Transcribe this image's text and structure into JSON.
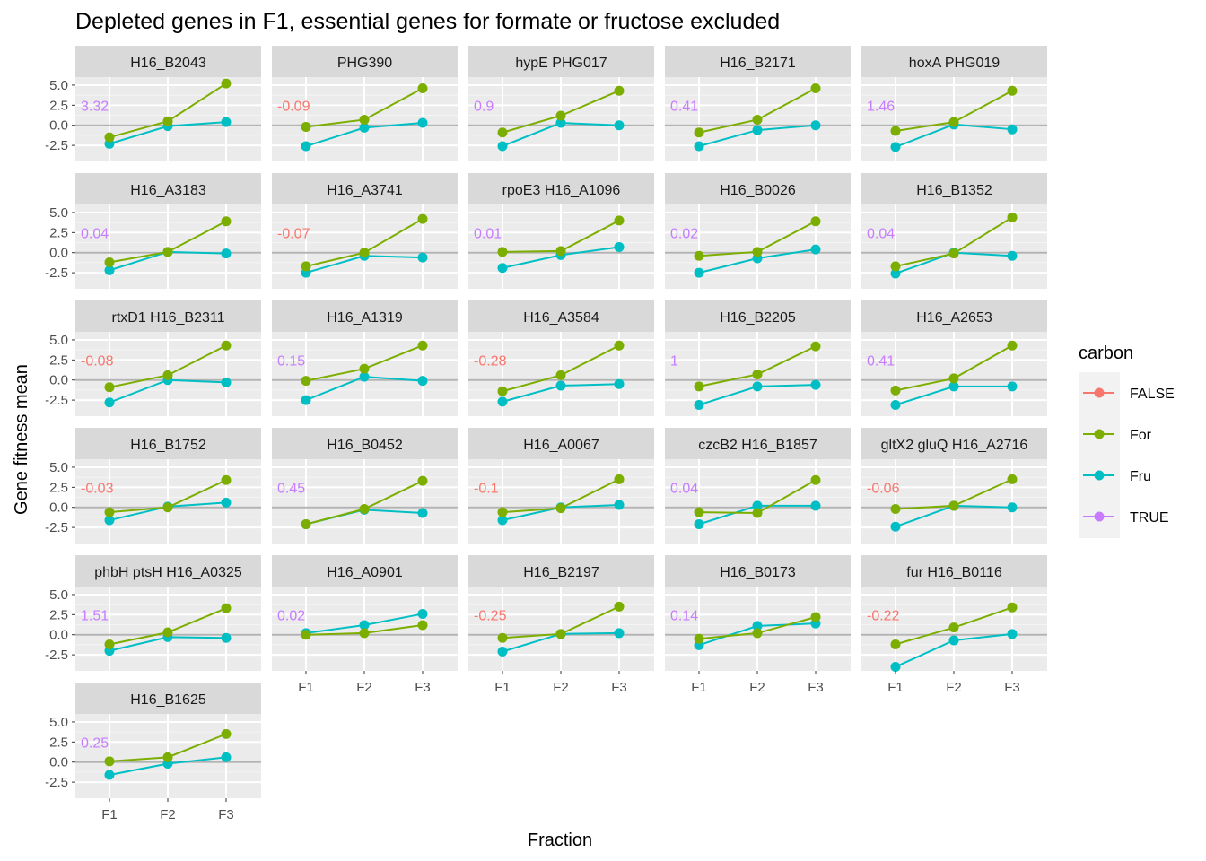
{
  "chart_data": {
    "type": "line",
    "title": "Depleted genes in F1, essential genes for formate or fructose excluded",
    "xlabel": "Fraction",
    "ylabel": "Gene fitness mean",
    "x": [
      "F1",
      "F2",
      "F3"
    ],
    "yticks": [
      5.0,
      2.5,
      0.0,
      -2.5
    ],
    "ytick_labels": [
      "5.0",
      "2.5",
      "0.0",
      "-2.5"
    ],
    "ylim": [
      -4.5,
      6.0
    ],
    "grid": true,
    "legend": {
      "title": "carbon",
      "position": "right",
      "entries": [
        {
          "label": "FALSE",
          "color": "#F8766D"
        },
        {
          "label": "For",
          "color": "#7CAE00"
        },
        {
          "label": "Fru",
          "color": "#00BFC4"
        },
        {
          "label": "TRUE",
          "color": "#C77CFF"
        }
      ]
    },
    "colors": {
      "FALSE": "#F8766D",
      "For": "#7CAE00",
      "Fru": "#00BFC4",
      "TRUE": "#C77CFF"
    },
    "panels": [
      {
        "gene": "H16_B2043",
        "label": "3.32",
        "flag": "TRUE",
        "For": [
          -1.5,
          0.5,
          5.2
        ],
        "Fru": [
          -2.3,
          -0.1,
          0.4
        ]
      },
      {
        "gene": "PHG390",
        "label": "-0.09",
        "flag": "FALSE",
        "For": [
          -0.2,
          0.7,
          4.6
        ],
        "Fru": [
          -2.6,
          -0.3,
          0.3
        ]
      },
      {
        "gene": "hypE PHG017",
        "label": "0.9",
        "flag": "TRUE",
        "For": [
          -0.9,
          1.2,
          4.3
        ],
        "Fru": [
          -2.6,
          0.3,
          0.0
        ]
      },
      {
        "gene": "H16_B2171",
        "label": "0.41",
        "flag": "TRUE",
        "For": [
          -0.9,
          0.7,
          4.6
        ],
        "Fru": [
          -2.6,
          -0.6,
          0.0
        ]
      },
      {
        "gene": "hoxA PHG019",
        "label": "1.46",
        "flag": "TRUE",
        "For": [
          -0.7,
          0.4,
          4.3
        ],
        "Fru": [
          -2.7,
          0.1,
          -0.5
        ]
      },
      {
        "gene": "H16_A3183",
        "label": "0.04",
        "flag": "TRUE",
        "For": [
          -1.2,
          0.1,
          3.9
        ],
        "Fru": [
          -2.2,
          0.1,
          -0.1
        ]
      },
      {
        "gene": "H16_A3741",
        "label": "-0.07",
        "flag": "FALSE",
        "For": [
          -1.7,
          0.0,
          4.2
        ],
        "Fru": [
          -2.5,
          -0.4,
          -0.6
        ]
      },
      {
        "gene": "rpoE3 H16_A1096",
        "label": "0.01",
        "flag": "TRUE",
        "For": [
          0.1,
          0.2,
          4.0
        ],
        "Fru": [
          -1.9,
          -0.3,
          0.7
        ]
      },
      {
        "gene": "H16_B0026",
        "label": "0.02",
        "flag": "TRUE",
        "For": [
          -0.4,
          0.1,
          3.9
        ],
        "Fru": [
          -2.5,
          -0.7,
          0.4
        ]
      },
      {
        "gene": "H16_B1352",
        "label": "0.04",
        "flag": "TRUE",
        "For": [
          -1.7,
          -0.1,
          4.4
        ],
        "Fru": [
          -2.6,
          0.0,
          -0.4
        ]
      },
      {
        "gene": "rtxD1 H16_B2311",
        "label": "-0.08",
        "flag": "FALSE",
        "For": [
          -0.9,
          0.6,
          4.3
        ],
        "Fru": [
          -2.8,
          0.0,
          -0.3
        ]
      },
      {
        "gene": "H16_A1319",
        "label": "0.15",
        "flag": "TRUE",
        "For": [
          -0.1,
          1.4,
          4.3
        ],
        "Fru": [
          -2.5,
          0.4,
          -0.1
        ]
      },
      {
        "gene": "H16_A3584",
        "label": "-0.28",
        "flag": "FALSE",
        "For": [
          -1.4,
          0.6,
          4.3
        ],
        "Fru": [
          -2.7,
          -0.7,
          -0.5
        ]
      },
      {
        "gene": "H16_B2205",
        "label": "1",
        "flag": "TRUE",
        "For": [
          -0.8,
          0.7,
          4.2
        ],
        "Fru": [
          -3.1,
          -0.8,
          -0.6
        ]
      },
      {
        "gene": "H16_A2653",
        "label": "0.41",
        "flag": "TRUE",
        "For": [
          -1.3,
          0.2,
          4.3
        ],
        "Fru": [
          -3.1,
          -0.8,
          -0.8
        ]
      },
      {
        "gene": "H16_B1752",
        "label": "-0.03",
        "flag": "FALSE",
        "For": [
          -0.6,
          0.0,
          3.4
        ],
        "Fru": [
          -1.6,
          0.1,
          0.6
        ]
      },
      {
        "gene": "H16_B0452",
        "label": "0.45",
        "flag": "TRUE",
        "For": [
          -2.1,
          -0.2,
          3.3
        ],
        "Fru": [
          -2.1,
          -0.3,
          -0.7
        ]
      },
      {
        "gene": "H16_A0067",
        "label": "-0.1",
        "flag": "FALSE",
        "For": [
          -0.6,
          -0.1,
          3.5
        ],
        "Fru": [
          -1.6,
          0.0,
          0.3
        ]
      },
      {
        "gene": "czcB2 H16_B1857",
        "label": "0.04",
        "flag": "TRUE",
        "For": [
          -0.6,
          -0.7,
          3.4
        ],
        "Fru": [
          -2.1,
          0.2,
          0.2
        ]
      },
      {
        "gene": "gltX2 gluQ H16_A2716",
        "label": "-0.06",
        "flag": "FALSE",
        "For": [
          -0.2,
          0.2,
          3.5
        ],
        "Fru": [
          -2.4,
          0.2,
          0.0
        ]
      },
      {
        "gene": "phbH ptsH H16_A0325",
        "label": "1.51",
        "flag": "TRUE",
        "For": [
          -1.2,
          0.3,
          3.3
        ],
        "Fru": [
          -2.0,
          -0.3,
          -0.4
        ]
      },
      {
        "gene": "H16_A0901",
        "label": "0.02",
        "flag": "TRUE",
        "For": [
          0.0,
          0.2,
          1.2
        ],
        "Fru": [
          0.2,
          1.2,
          2.6
        ]
      },
      {
        "gene": "H16_B2197",
        "label": "-0.25",
        "flag": "FALSE",
        "For": [
          -0.4,
          0.1,
          3.5
        ],
        "Fru": [
          -2.1,
          0.1,
          0.2
        ]
      },
      {
        "gene": "H16_B0173",
        "label": "0.14",
        "flag": "TRUE",
        "For": [
          -0.5,
          0.2,
          2.2
        ],
        "Fru": [
          -1.3,
          1.1,
          1.4
        ]
      },
      {
        "gene": "fur H16_B0116",
        "label": "-0.22",
        "flag": "FALSE",
        "For": [
          -1.2,
          0.9,
          3.4
        ],
        "Fru": [
          -4.0,
          -0.7,
          0.1
        ]
      },
      {
        "gene": "H16_B1625",
        "label": "0.25",
        "flag": "TRUE",
        "For": [
          0.1,
          0.6,
          3.5
        ],
        "Fru": [
          -1.6,
          -0.2,
          0.6
        ]
      }
    ]
  }
}
